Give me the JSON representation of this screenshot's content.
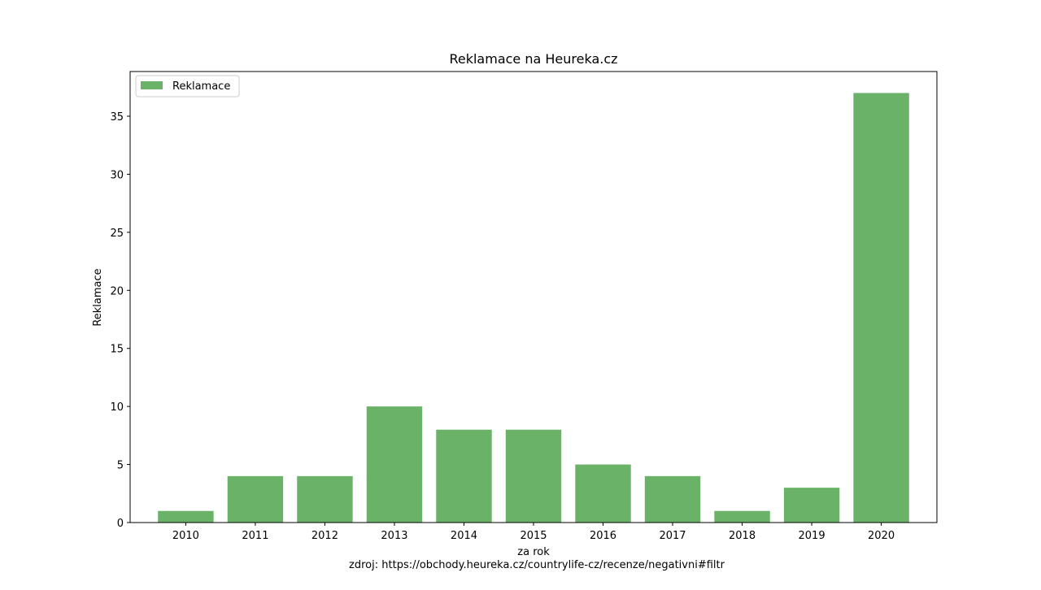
{
  "chart_data": {
    "type": "bar",
    "title": "Reklamace na Heureka.cz",
    "xlabel": "za rok",
    "ylabel": "Reklamace",
    "source_note": "zdroj:  https://obchody.heureka.cz/countrylife-cz/recenze/negativni#filtr",
    "categories": [
      "2010",
      "2011",
      "2012",
      "2013",
      "2014",
      "2015",
      "2016",
      "2017",
      "2018",
      "2019",
      "2020"
    ],
    "series": [
      {
        "name": "Reklamace",
        "values": [
          1,
          4,
          4,
          10,
          8,
          8,
          5,
          4,
          1,
          3,
          37
        ],
        "color": "#69b267"
      }
    ],
    "ylim": [
      0,
      38.85
    ],
    "yticks": [
      0,
      5,
      10,
      15,
      20,
      25,
      30,
      35
    ],
    "legend_position": "top-left",
    "grid": false
  }
}
